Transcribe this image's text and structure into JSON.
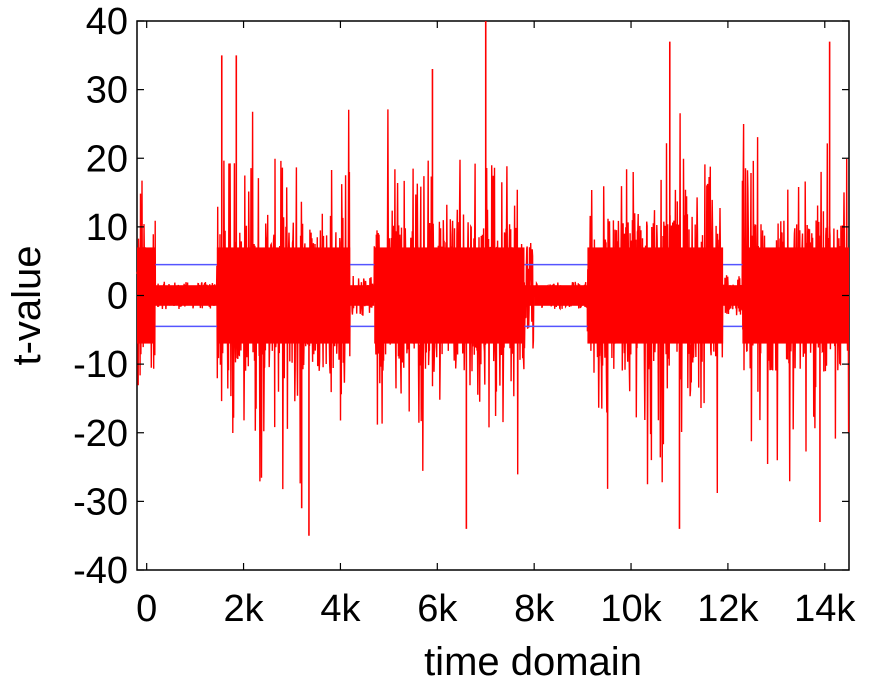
{
  "chart_data": {
    "type": "line",
    "title": "",
    "xlabel": "time domain",
    "ylabel": "t-value",
    "xlim": [
      -200,
      14500
    ],
    "ylim": [
      -40,
      40
    ],
    "x_ticks": [
      0,
      2000,
      4000,
      6000,
      8000,
      10000,
      12000,
      14000
    ],
    "x_tick_labels": [
      "0",
      "2k",
      "4k",
      "6k",
      "8k",
      "10k",
      "12k",
      "14k"
    ],
    "y_ticks": [
      -40,
      -30,
      -20,
      -10,
      0,
      10,
      20,
      30,
      40
    ],
    "y_tick_labels": [
      "-40",
      "-30",
      "-20",
      "-10",
      "0",
      "10",
      "20",
      "30",
      "40"
    ],
    "grid": false,
    "legend": "none",
    "threshold_lines": [
      {
        "y": 4.5,
        "color": "#5555ff"
      },
      {
        "y": -4.5,
        "color": "#5555ff"
      }
    ],
    "series": [
      {
        "color": "#ff0000",
        "segments": [
          {
            "x_range": [
              -200,
              180
            ],
            "amplitude": 14
          },
          {
            "x_range": [
              180,
              1450
            ],
            "amplitude": 2
          },
          {
            "x_range": [
              1450,
              4200
            ],
            "amplitude": 34
          },
          {
            "x_range": [
              4200,
              4700
            ],
            "amplitude": 3
          },
          {
            "x_range": [
              4700,
              7800
            ],
            "amplitude": 34
          },
          {
            "x_range": [
              7800,
              8000
            ],
            "amplitude": 8
          },
          {
            "x_range": [
              8000,
              9100
            ],
            "amplitude": 2
          },
          {
            "x_range": [
              9100,
              11900
            ],
            "amplitude": 35
          },
          {
            "x_range": [
              11900,
              12300
            ],
            "amplitude": 3
          },
          {
            "x_range": [
              12300,
              14500
            ],
            "amplitude": 36
          }
        ],
        "peaks": [
          {
            "x": 1550,
            "y": 35
          },
          {
            "x": 1850,
            "y": 35
          },
          {
            "x": 3200,
            "y": -31
          },
          {
            "x": 3350,
            "y": -35
          },
          {
            "x": 5900,
            "y": 33
          },
          {
            "x": 6600,
            "y": -34
          },
          {
            "x": 7000,
            "y": 40
          },
          {
            "x": 10800,
            "y": 37
          },
          {
            "x": 11000,
            "y": -34
          },
          {
            "x": 14100,
            "y": 37
          },
          {
            "x": 13900,
            "y": -33
          }
        ]
      }
    ]
  }
}
